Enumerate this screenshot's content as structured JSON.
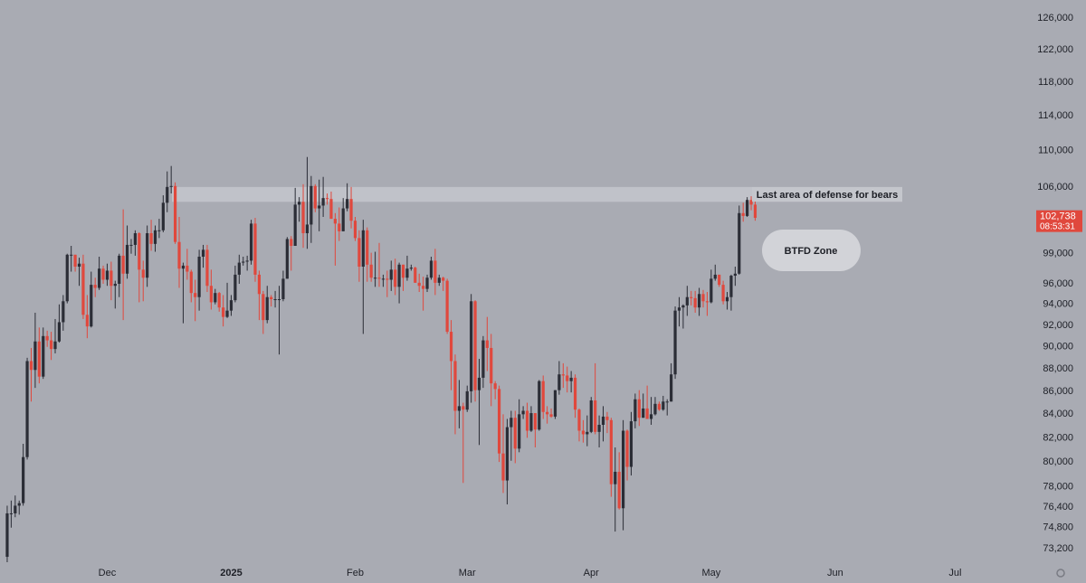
{
  "chart_data": {
    "type": "candlestick",
    "log_scale": true,
    "grid": false,
    "up_color": "#2b2d36",
    "down_color": "#e0483d",
    "ylim": [
      72200,
      128350
    ],
    "xlim": [
      -1.8,
      255
    ],
    "yticks": [
      {
        "value": 73200,
        "label": "73,200"
      },
      {
        "value": 74800,
        "label": "74,800"
      },
      {
        "value": 76400,
        "label": "76,400"
      },
      {
        "value": 78000,
        "label": "78,000"
      },
      {
        "value": 80000,
        "label": "80,000"
      },
      {
        "value": 82000,
        "label": "82,000"
      },
      {
        "value": 84000,
        "label": "84,000"
      },
      {
        "value": 86000,
        "label": "86,000"
      },
      {
        "value": 88000,
        "label": "88,000"
      },
      {
        "value": 90000,
        "label": "90,000"
      },
      {
        "value": 92000,
        "label": "92,000"
      },
      {
        "value": 94000,
        "label": "94,000"
      },
      {
        "value": 96000,
        "label": "96,000"
      },
      {
        "value": 99000,
        "label": "99,000"
      },
      {
        "value": 106000,
        "label": "106,000"
      },
      {
        "value": 110000,
        "label": "110,000"
      },
      {
        "value": 114000,
        "label": "114,000"
      },
      {
        "value": 118000,
        "label": "118,000"
      },
      {
        "value": 122000,
        "label": "122,000"
      },
      {
        "value": 126000,
        "label": "126,000"
      }
    ],
    "xticks": [
      {
        "value": 25,
        "label": "Dec"
      },
      {
        "value": 56,
        "label": "2025"
      },
      {
        "value": 87,
        "label": "Feb"
      },
      {
        "value": 115,
        "label": "Mar"
      },
      {
        "value": 146,
        "label": "Apr"
      },
      {
        "value": 176,
        "label": "May"
      },
      {
        "value": 207,
        "label": "Jun"
      },
      {
        "value": 237,
        "label": "Jul"
      }
    ],
    "open": [
      72600,
      75900,
      75900,
      76500,
      76700,
      80400,
      88700,
      87900,
      90500,
      87300,
      91000,
      90600,
      89800,
      90500,
      92300,
      94300,
      98900,
      98900,
      97700,
      98000,
      93000,
      91900,
      95900,
      95600,
      97500,
      96400,
      97300,
      95800,
      96000,
      98800,
      97000,
      99900,
      99900,
      101100,
      97400,
      96600,
      101100,
      100000,
      101400,
      101400,
      104300,
      106000,
      106100,
      100200,
      97500,
      97800,
      97200,
      95100,
      94700,
      98700,
      99400,
      95800,
      94200,
      95100,
      93700,
      92800,
      93400,
      94400,
      96900,
      98100,
      98200,
      98300,
      102100,
      96900,
      95000,
      92500,
      94700,
      94500,
      94500,
      94500,
      96500,
      100500,
      99800,
      104100,
      104400,
      101100,
      102000,
      106100,
      103700,
      104000,
      104800,
      104700,
      102600,
      102100,
      101300,
      103700,
      104700,
      102400,
      100600,
      97700,
      101400,
      97900,
      96600,
      96600,
      96500,
      96500,
      96400,
      97400,
      95700,
      97900,
      96600,
      97500,
      97600,
      96100,
      95800,
      95500,
      96600,
      98300,
      96100,
      96600,
      96300,
      91400,
      88700,
      84300,
      84700,
      84400,
      86000,
      94300,
      86100,
      87200,
      90600,
      89900,
      86700,
      86200,
      80700,
      78500,
      82900,
      83700,
      81100,
      84000,
      84300,
      82600,
      84100,
      82700,
      86900,
      84200,
      84000,
      83800,
      86100,
      87500,
      87400,
      86900,
      87200,
      84400,
      82600,
      82300,
      82500,
      85200,
      82500,
      83100,
      83800,
      83500,
      78200,
      79200,
      76300,
      82600,
      79600,
      83400,
      85300,
      83700,
      84500,
      83600,
      84000,
      84900,
      84400,
      85100,
      85100,
      87500,
      93400,
      93700,
      93900,
      94700,
      94600,
      93700,
      95000,
      94300,
      94200,
      96500,
      96900,
      95900,
      94300,
      94700,
      96800,
      97000,
      103200,
      102900,
      104600,
      104100
    ],
    "high": [
      76500,
      76900,
      77300,
      76900,
      81500,
      89000,
      89900,
      93200,
      91800,
      91800,
      91500,
      91400,
      92600,
      94000,
      94900,
      99000,
      99800,
      98900,
      98600,
      98900,
      94900,
      97200,
      96600,
      98700,
      97800,
      98000,
      98200,
      96300,
      99000,
      103600,
      101900,
      100500,
      101400,
      101200,
      98300,
      101900,
      102500,
      101900,
      102600,
      105100,
      107700,
      108300,
      106500,
      102800,
      98100,
      99500,
      97400,
      96400,
      99400,
      99900,
      99900,
      97400,
      95500,
      95200,
      94900,
      96100,
      94900,
      97800,
      98900,
      98700,
      98800,
      102500,
      102700,
      97300,
      95300,
      95800,
      94900,
      95300,
      95800,
      97300,
      100700,
      100800,
      105900,
      104900,
      106300,
      109300,
      107200,
      106300,
      106800,
      107100,
      105300,
      105500,
      103200,
      103800,
      104800,
      106400,
      106000,
      102800,
      101400,
      102500,
      101700,
      99100,
      99200,
      100100,
      96900,
      97300,
      98300,
      98500,
      98100,
      97900,
      98800,
      97900,
      97700,
      97000,
      96700,
      96900,
      98700,
      99500,
      96900,
      96700,
      96500,
      92500,
      89300,
      87000,
      85000,
      86500,
      95000,
      94400,
      88900,
      91000,
      92800,
      91200,
      86900,
      86500,
      84000,
      83600,
      84300,
      84300,
      85300,
      84700,
      85000,
      84700,
      84100,
      87000,
      87400,
      84700,
      84500,
      86100,
      88700,
      88500,
      88200,
      87800,
      87500,
      84500,
      83500,
      83900,
      85500,
      88500,
      83900,
      84700,
      84200,
      83700,
      81200,
      80800,
      83500,
      82700,
      84200,
      85800,
      86100,
      85800,
      86500,
      85500,
      85500,
      85100,
      85600,
      85300,
      88500,
      93800,
      94700,
      94000,
      95800,
      95300,
      95300,
      95600,
      95400,
      95200,
      97400,
      97900,
      96900,
      96300,
      95200,
      96900,
      97700,
      104000,
      104300,
      104900,
      105000,
      105000
    ],
    "low": [
      72200,
      74800,
      75600,
      75800,
      76500,
      80200,
      85100,
      86300,
      86700,
      87100,
      90000,
      88800,
      89400,
      90400,
      91500,
      94100,
      97200,
      97200,
      95800,
      92600,
      90800,
      91800,
      94700,
      95400,
      96000,
      95800,
      94400,
      93600,
      94700,
      92500,
      96500,
      99000,
      98800,
      94200,
      94300,
      95700,
      99300,
      99200,
      100600,
      101200,
      103300,
      105300,
      100000,
      95600,
      92200,
      96400,
      94200,
      92400,
      93400,
      97600,
      95200,
      93500,
      94000,
      93300,
      91900,
      92700,
      92900,
      94200,
      96000,
      97800,
      97300,
      97900,
      96200,
      92500,
      91200,
      92200,
      93800,
      93700,
      89300,
      94300,
      96500,
      97300,
      99800,
      102300,
      99600,
      99500,
      100100,
      103300,
      101300,
      102800,
      104100,
      102600,
      97800,
      100300,
      101300,
      103400,
      101600,
      100300,
      96200,
      91200,
      96200,
      96200,
      95700,
      95700,
      95700,
      94700,
      95300,
      94900,
      94100,
      95300,
      96300,
      97300,
      96100,
      95200,
      93400,
      95200,
      96400,
      94900,
      95800,
      95300,
      91200,
      86100,
      82300,
      82800,
      78300,
      84200,
      85000,
      85100,
      81400,
      86300,
      87800,
      84700,
      85300,
      80000,
      77500,
      76600,
      80100,
      79900,
      80800,
      83600,
      82000,
      82500,
      81200,
      82600,
      83600,
      83200,
      83700,
      83600,
      85700,
      86300,
      85900,
      85900,
      83700,
      81700,
      81600,
      81300,
      82400,
      82300,
      81200,
      81700,
      82400,
      77200,
      74500,
      76200,
      74600,
      78500,
      78900,
      82800,
      83000,
      83700,
      83600,
      83100,
      83900,
      84300,
      84300,
      83900,
      85100,
      87100,
      91900,
      91700,
      92900,
      93900,
      93200,
      92900,
      93700,
      92900,
      94100,
      96300,
      95700,
      94000,
      93500,
      93400,
      95800,
      96900,
      102300,
      102800,
      103500,
      102400
    ],
    "close": [
      75900,
      75900,
      76500,
      76700,
      80400,
      88700,
      87900,
      90500,
      87300,
      91000,
      90600,
      89800,
      90500,
      92300,
      94300,
      98900,
      98900,
      97700,
      98000,
      93000,
      91900,
      95900,
      95600,
      97500,
      96400,
      97300,
      95800,
      96000,
      98800,
      97000,
      99900,
      99900,
      101100,
      97400,
      96600,
      101100,
      100000,
      101400,
      101400,
      104300,
      106000,
      106100,
      100200,
      97500,
      97800,
      97200,
      95100,
      94700,
      98700,
      99400,
      95800,
      94200,
      95100,
      93700,
      92800,
      93400,
      94400,
      96900,
      98100,
      98200,
      98300,
      102100,
      96900,
      95000,
      92500,
      94700,
      94500,
      94500,
      94500,
      96500,
      100500,
      99800,
      104100,
      104400,
      101100,
      102000,
      106100,
      103700,
      104000,
      104800,
      104700,
      102600,
      102100,
      101300,
      103700,
      104700,
      102400,
      100600,
      97700,
      101400,
      97900,
      96600,
      96600,
      96500,
      96500,
      96400,
      97400,
      95700,
      97900,
      96600,
      97500,
      97600,
      96100,
      95800,
      95500,
      96600,
      98300,
      96100,
      96600,
      96300,
      91400,
      88700,
      84300,
      84700,
      84400,
      86000,
      94300,
      86100,
      87200,
      90600,
      89900,
      86700,
      86200,
      80700,
      78500,
      82900,
      83700,
      81100,
      84000,
      84300,
      82600,
      84100,
      82700,
      86900,
      84200,
      84000,
      83800,
      86100,
      87500,
      87400,
      86900,
      87200,
      84400,
      82600,
      82300,
      82500,
      85200,
      82500,
      83100,
      83800,
      83500,
      78200,
      79200,
      76300,
      82600,
      79600,
      83400,
      85300,
      83700,
      84500,
      83600,
      84000,
      84900,
      84400,
      85100,
      85100,
      87500,
      93400,
      93700,
      93900,
      94700,
      94600,
      93700,
      95000,
      94300,
      94200,
      96500,
      96900,
      95900,
      94300,
      94700,
      96800,
      97000,
      103200,
      102900,
      104600,
      104100,
      102700
    ],
    "zone": {
      "low": 104400,
      "high": 106000
    },
    "annotations": [
      "Last area of defense for bears",
      "BTFD Zone"
    ],
    "last_price": {
      "value": 102738,
      "label": "102,738"
    },
    "countdown": "08:53:31"
  }
}
